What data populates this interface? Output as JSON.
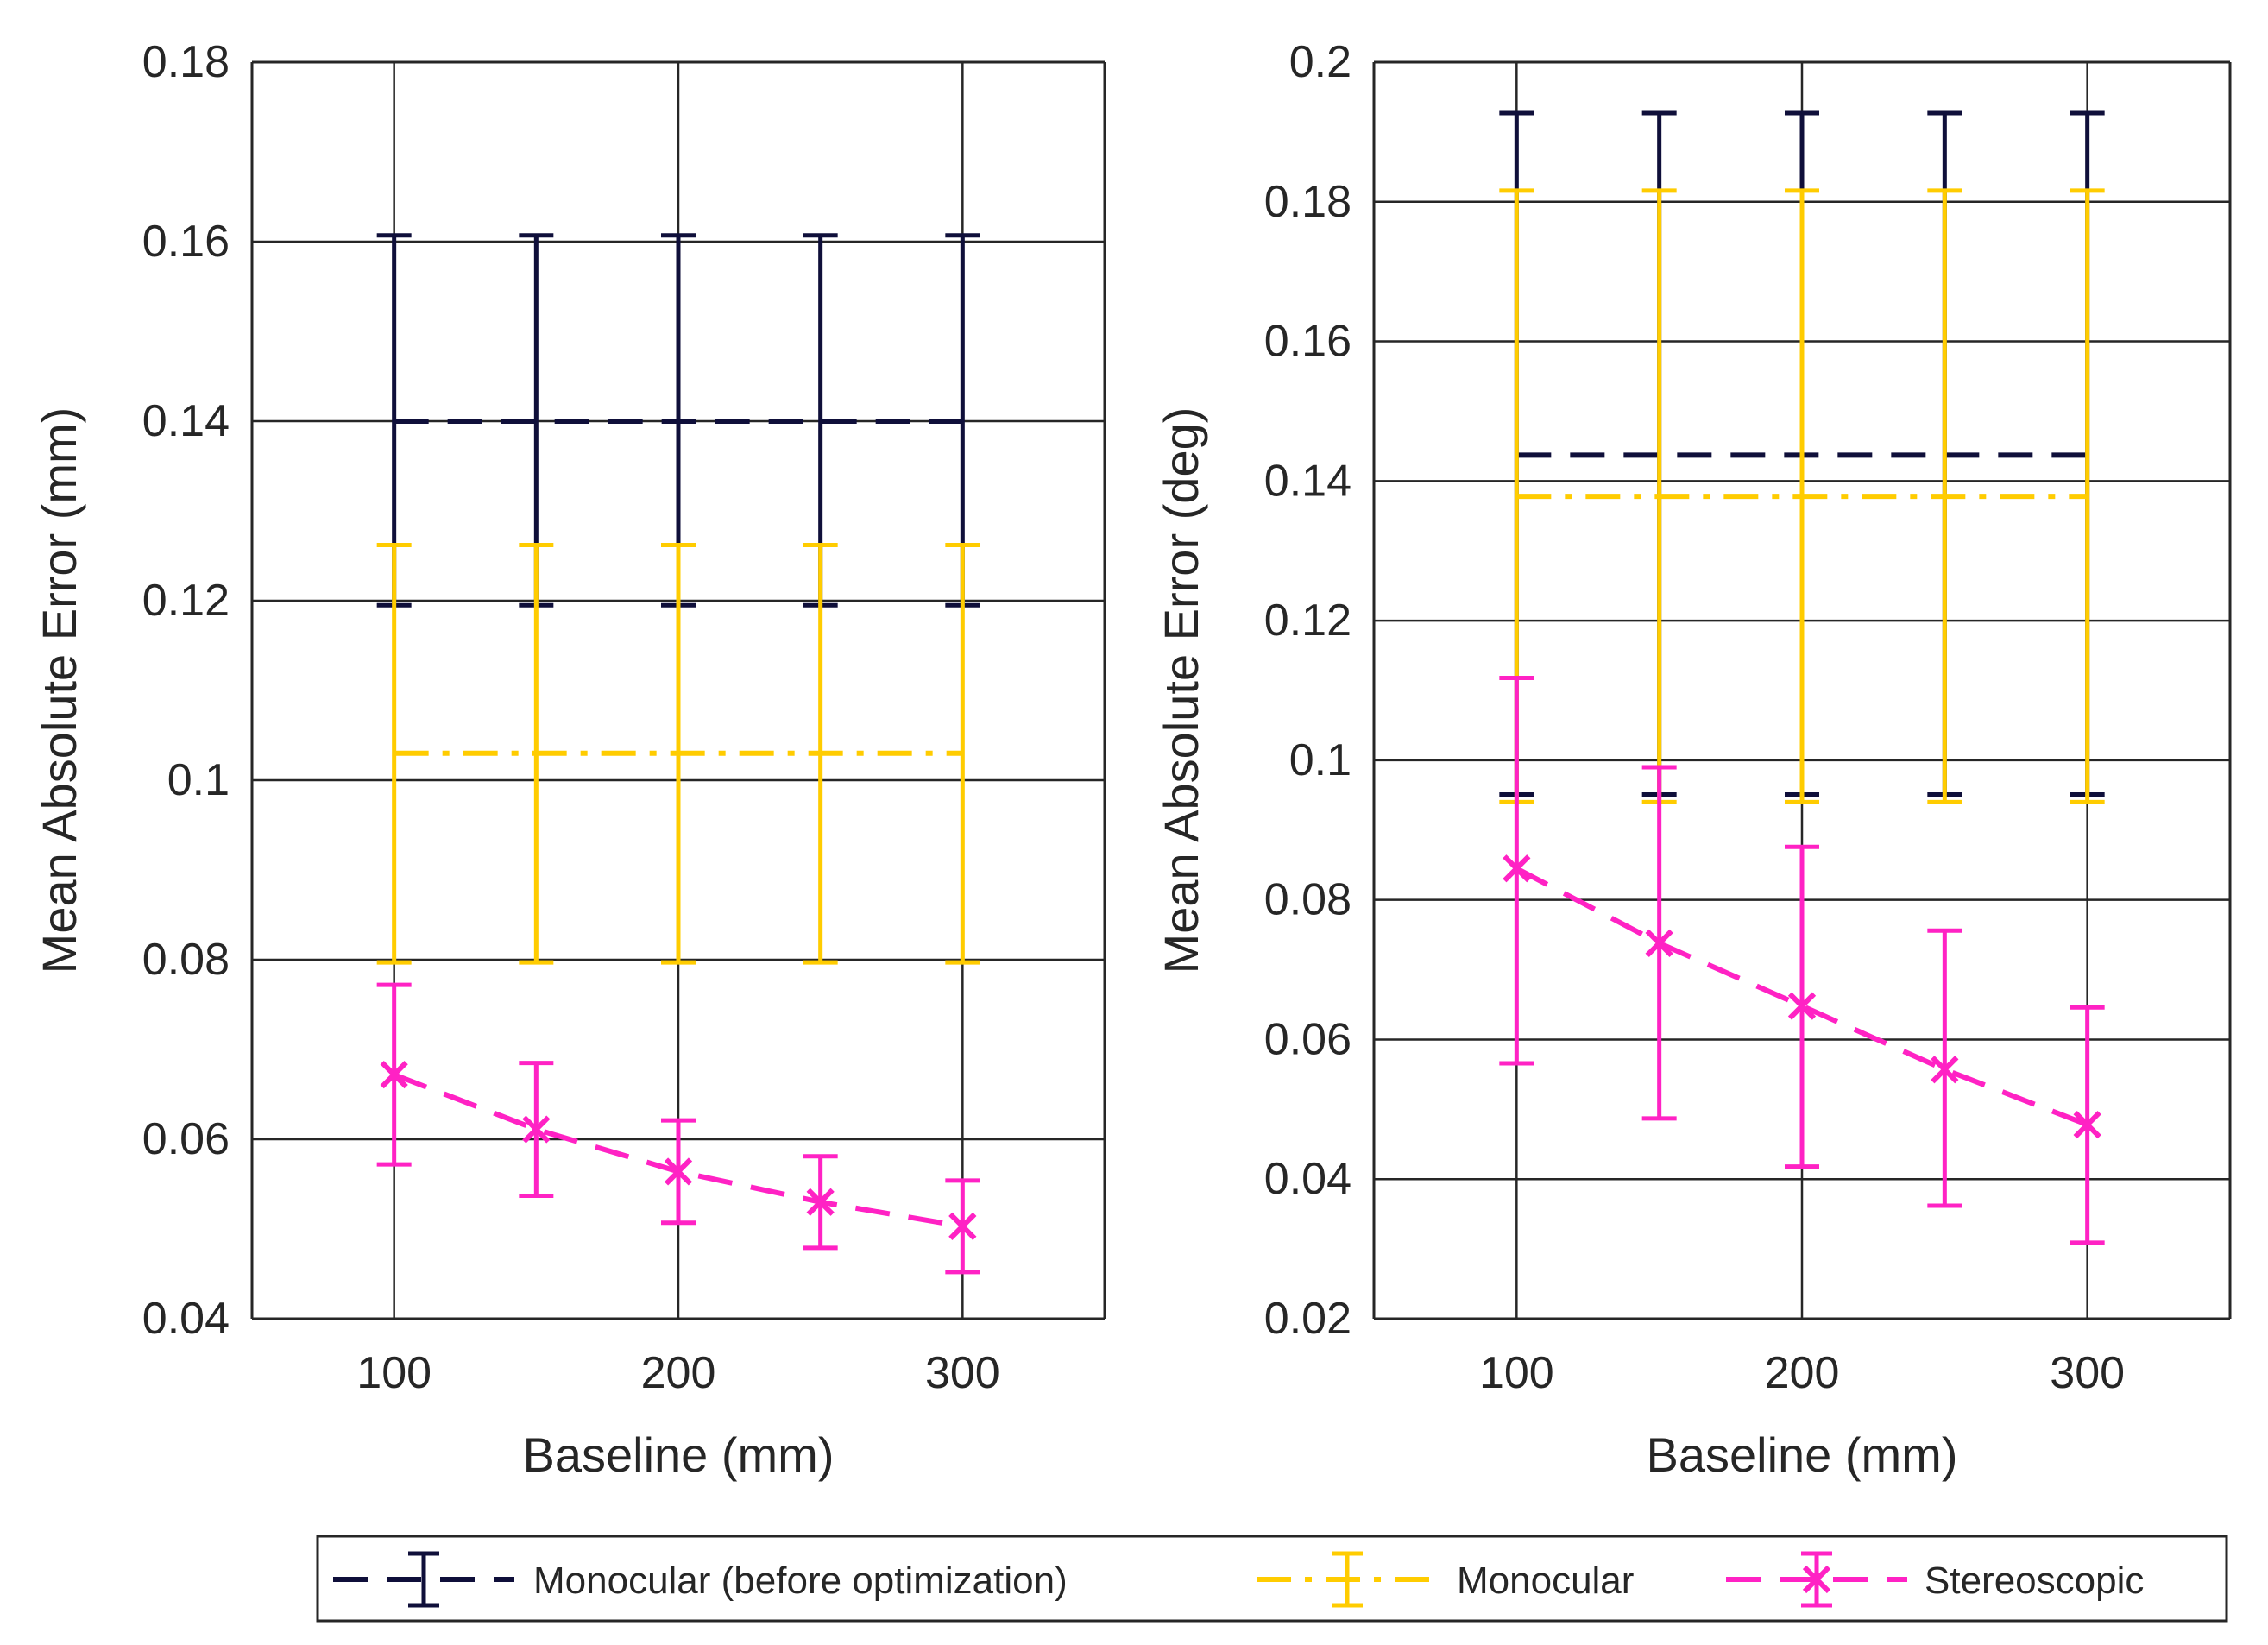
{
  "legend": {
    "entries": [
      {
        "label": "Monocular (before optimization)",
        "color": "#0f0f3a",
        "dash": "dashed",
        "marker": "none"
      },
      {
        "label": "Monocular",
        "color": "#ffcc00",
        "dash": "dashdot",
        "marker": "none"
      },
      {
        "label": "Stereoscopic",
        "color": "#ff22c4",
        "dash": "dashed",
        "marker": "x"
      }
    ]
  },
  "chart_data": [
    {
      "type": "line",
      "title": "",
      "xlabel": "Baseline (mm)",
      "ylabel": "Mean Absolute Error (mm)",
      "xlim": [
        50,
        350
      ],
      "ylim": [
        0.04,
        0.18
      ],
      "xticks": [
        100,
        200,
        300
      ],
      "xtick_labels": [
        "100",
        "200",
        "300"
      ],
      "yticks": [
        0.04,
        0.06,
        0.08,
        0.1,
        0.12,
        0.14,
        0.16,
        0.18
      ],
      "ytick_labels": [
        "0.04",
        "0.06",
        "0.08",
        "0.1",
        "0.12",
        "0.14",
        "0.16",
        "0.18"
      ],
      "grid": true,
      "x": [
        100,
        150,
        200,
        250,
        300
      ],
      "series": [
        {
          "name": "Monocular (before optimization)",
          "color": "#0f0f3a",
          "dash": "dashed",
          "marker": "none",
          "values": [
            0.14,
            0.14,
            0.14,
            0.14,
            0.14
          ],
          "err_low": [
            0.1195,
            0.1195,
            0.1195,
            0.1195,
            0.1195
          ],
          "err_high": [
            0.1607,
            0.1607,
            0.1607,
            0.1607,
            0.1607
          ]
        },
        {
          "name": "Monocular",
          "color": "#ffcc00",
          "dash": "dashdot",
          "marker": "none",
          "values": [
            0.103,
            0.103,
            0.103,
            0.103,
            0.103
          ],
          "err_low": [
            0.0797,
            0.0797,
            0.0797,
            0.0797,
            0.0797
          ],
          "err_high": [
            0.1262,
            0.1262,
            0.1262,
            0.1262,
            0.1262
          ]
        },
        {
          "name": "Stereoscopic",
          "color": "#ff22c4",
          "dash": "dashed",
          "marker": "x",
          "values": [
            0.0672,
            0.0611,
            0.0564,
            0.053,
            0.0503
          ],
          "err_low": [
            0.0572,
            0.0537,
            0.0507,
            0.0479,
            0.0452
          ],
          "err_high": [
            0.0772,
            0.0685,
            0.0621,
            0.0581,
            0.0554
          ]
        }
      ]
    },
    {
      "type": "line",
      "title": "",
      "xlabel": "Baseline (mm)",
      "ylabel": "Mean Absolute Error (deg)",
      "xlim": [
        50,
        350
      ],
      "ylim": [
        0.02,
        0.2
      ],
      "xticks": [
        100,
        200,
        300
      ],
      "xtick_labels": [
        "100",
        "200",
        "300"
      ],
      "yticks": [
        0.02,
        0.04,
        0.06,
        0.08,
        0.1,
        0.12,
        0.14,
        0.16,
        0.18,
        0.2
      ],
      "ytick_labels": [
        "0.02",
        "0.04",
        "0.06",
        "0.08",
        "0.1",
        "0.12",
        "0.14",
        "0.16",
        "0.18",
        "0.2"
      ],
      "grid": true,
      "x": [
        100,
        150,
        200,
        250,
        300
      ],
      "series": [
        {
          "name": "Monocular (before optimization)",
          "color": "#0f0f3a",
          "dash": "dashed",
          "marker": "none",
          "values": [
            0.1437,
            0.1437,
            0.1437,
            0.1437,
            0.1437
          ],
          "err_low": [
            0.0951,
            0.0951,
            0.0951,
            0.0951,
            0.0951
          ],
          "err_high": [
            0.1927,
            0.1927,
            0.1927,
            0.1927,
            0.1927
          ]
        },
        {
          "name": "Monocular",
          "color": "#ffcc00",
          "dash": "dashdot",
          "marker": "none",
          "values": [
            0.1378,
            0.1378,
            0.1378,
            0.1378,
            0.1378
          ],
          "err_low": [
            0.094,
            0.094,
            0.094,
            0.094,
            0.094
          ],
          "err_high": [
            0.1816,
            0.1816,
            0.1816,
            0.1816,
            0.1816
          ]
        },
        {
          "name": "Stereoscopic",
          "color": "#ff22c4",
          "dash": "dashed",
          "marker": "x",
          "values": [
            0.0845,
            0.0738,
            0.0648,
            0.0557,
            0.0478
          ],
          "err_low": [
            0.0566,
            0.0487,
            0.0418,
            0.0362,
            0.0309
          ],
          "err_high": [
            0.1118,
            0.099,
            0.0876,
            0.0756,
            0.0646
          ]
        }
      ]
    }
  ]
}
